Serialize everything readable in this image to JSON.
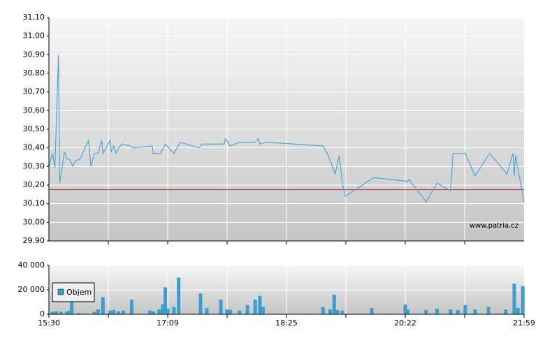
{
  "chart_data": [
    {
      "type": "line",
      "x": [
        "15:30",
        "15:33",
        "15:35",
        "15:38",
        "15:39",
        "15:43",
        "15:45",
        "15:47",
        "15:50",
        "15:52",
        "15:56",
        "16:03",
        "16:05",
        "16:08",
        "16:11",
        "16:14",
        "16:15",
        "16:21",
        "16:22",
        "16:24",
        "16:26",
        "16:28",
        "16:31",
        "16:38",
        "16:40",
        "16:56",
        "16:57",
        "17:03",
        "17:07",
        "17:13",
        "17:17",
        "17:29",
        "17:31",
        "17:36",
        "17:45",
        "17:46",
        "17:49",
        "17:55",
        "18:05",
        "18:07",
        "18:08",
        "18:12",
        "19:01",
        "19:06",
        "19:13",
        "19:17",
        "19:20",
        "19:23",
        "19:51",
        "20:24",
        "20:25",
        "20:39",
        "20:48",
        "20:59",
        "21:01",
        "21:11",
        "21:19",
        "21:31",
        "21:45",
        "21:50",
        "21:51",
        "21:52",
        "21:59"
      ],
      "series": [
        {
          "color": "#4ea6d8",
          "values": [
            30.3,
            30.37,
            30.29,
            30.9,
            30.21,
            30.38,
            30.34,
            30.34,
            30.3,
            30.33,
            30.34,
            30.44,
            30.3,
            30.37,
            30.37,
            30.44,
            30.37,
            30.44,
            30.38,
            30.41,
            30.37,
            30.4,
            30.42,
            30.41,
            30.4,
            30.41,
            30.37,
            30.37,
            30.42,
            30.37,
            30.43,
            30.4,
            30.42,
            30.42,
            30.42,
            30.45,
            30.41,
            30.43,
            30.43,
            30.45,
            30.42,
            30.43,
            30.41,
            30.36,
            30.26,
            30.36,
            30.21,
            30.14,
            30.24,
            30.22,
            30.23,
            30.11,
            30.21,
            30.17,
            30.37,
            30.37,
            30.25,
            30.37,
            30.26,
            30.37,
            30.25,
            30.36,
            30.11
          ]
        }
      ],
      "reference_line": 30.175,
      "reference_color": "#cc2222",
      "ylim": [
        29.9,
        31.1
      ],
      "yticks": [
        {
          "value": 29.9,
          "label": "29.90"
        },
        {
          "value": 30.0,
          "label": "30,00"
        },
        {
          "value": 30.1,
          "label": "30,10"
        },
        {
          "value": 30.2,
          "label": "30,20"
        },
        {
          "value": 30.3,
          "label": "30,30"
        },
        {
          "value": 30.4,
          "label": "30,40"
        },
        {
          "value": 30.5,
          "label": "30,50"
        },
        {
          "value": 30.6,
          "label": "30,60"
        },
        {
          "value": 30.7,
          "label": "30,70"
        },
        {
          "value": 30.8,
          "label": "30,80"
        },
        {
          "value": 30.9,
          "label": "30,90"
        },
        {
          "value": 31.0,
          "label": "31,00"
        },
        {
          "value": 31.1,
          "label": "31,10"
        }
      ],
      "grid": true,
      "annotation": "www.patria.cz"
    },
    {
      "type": "bar",
      "x": [
        "15:33",
        "15:36",
        "15:40",
        "15:45",
        "15:47",
        "15:49",
        "15:55",
        "16:08",
        "16:11",
        "16:15",
        "16:21",
        "16:24",
        "16:28",
        "16:32",
        "16:39",
        "16:54",
        "16:57",
        "17:02",
        "17:05",
        "17:07",
        "17:09",
        "17:13",
        "17:16",
        "17:30",
        "17:34",
        "17:43",
        "17:47",
        "17:49",
        "17:55",
        "18:00",
        "18:05",
        "18:08",
        "18:10",
        "19:01",
        "19:08",
        "19:12",
        "19:15",
        "19:20",
        "19:49",
        "20:22",
        "20:24",
        "20:39",
        "20:48",
        "20:59",
        "21:05",
        "21:11",
        "21:19",
        "21:30",
        "21:44",
        "21:51",
        "21:54",
        "21:58"
      ],
      "series": [
        {
          "name": "Objem",
          "color": "#3a9fd0",
          "values": [
            2000,
            2500,
            2000,
            2000,
            3000,
            15000,
            1000,
            2000,
            4000,
            14000,
            3000,
            3500,
            2500,
            3000,
            12000,
            3000,
            2500,
            4000,
            8000,
            22000,
            4500,
            6000,
            30000,
            17000,
            5000,
            12000,
            4000,
            3500,
            3000,
            7500,
            12000,
            15000,
            6000,
            6000,
            4000,
            16000,
            3500,
            3000,
            5000,
            8000,
            4000,
            3500,
            4500,
            4000,
            3500,
            7500,
            4000,
            6000,
            4000,
            25000,
            5000,
            23000
          ]
        }
      ],
      "ylim": [
        0,
        40000
      ],
      "yticks": [
        0,
        {
          "value": 20000,
          "label": "20 000"
        },
        {
          "value": 40000,
          "label": "40 000"
        }
      ],
      "xticks": [
        "15:30",
        "17:09",
        "18:25",
        "20:22",
        "21:59"
      ],
      "grid": true,
      "legend": "left"
    }
  ]
}
